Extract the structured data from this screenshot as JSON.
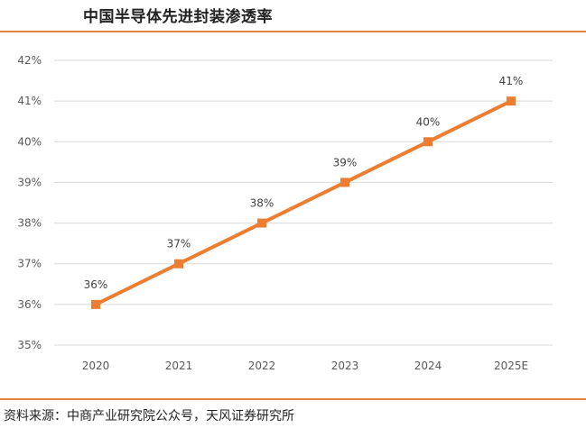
{
  "title": "中国半导体先进封装渗透率",
  "source": "资料来源：中商产业研究院公众号，天风证券研究所",
  "colors": {
    "accent": "#e8833a",
    "line": "#ed7d31",
    "grid": "#d9d9d9"
  },
  "chart_data": {
    "type": "line",
    "title": "",
    "xlabel": "",
    "ylabel": "",
    "categories": [
      "2020",
      "2021",
      "2022",
      "2023",
      "2024",
      "2025E"
    ],
    "series": [
      {
        "values": [
          36,
          37,
          38,
          39,
          40,
          41
        ]
      }
    ],
    "value_labels": [
      "36%",
      "37%",
      "38%",
      "39%",
      "40%",
      "41%"
    ],
    "y_ticks": [
      35,
      36,
      37,
      38,
      39,
      40,
      41,
      42
    ],
    "y_tick_labels": [
      "35%",
      "36%",
      "37%",
      "38%",
      "39%",
      "40%",
      "41%",
      "42%"
    ],
    "ylim": [
      35,
      42
    ],
    "grid": true,
    "legend": "none",
    "marker": "square"
  }
}
